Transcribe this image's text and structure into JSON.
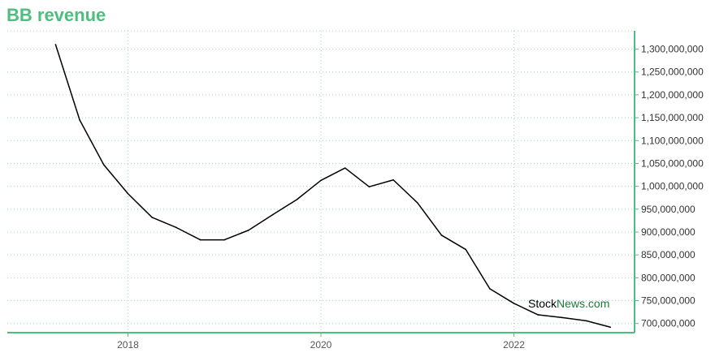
{
  "title": "BB revenue",
  "watermark": {
    "part1": "Stock",
    "part2": "News",
    "part3": ".com"
  },
  "colors": {
    "accent": "#4cbf7e",
    "line": "#000000",
    "grid": "#9fd9c0",
    "watermark_green": "#1a7a3a"
  },
  "chart_data": {
    "type": "line",
    "title": "BB revenue",
    "xlabel": "",
    "ylabel": "",
    "x_tick_labels": [
      "2018",
      "2020",
      "2022"
    ],
    "y_tick_labels": [
      "700,000,000",
      "750,000,000",
      "800,000,000",
      "850,000,000",
      "900,000,000",
      "950,000,000",
      "1,000,000,000",
      "1,050,000,000",
      "1,100,000,000",
      "1,150,000,000",
      "1,200,000,000",
      "1,250,000,000",
      "1,300,000,000"
    ],
    "y_ticks": [
      700000000,
      750000000,
      800000000,
      850000000,
      900000000,
      950000000,
      1000000000,
      1050000000,
      1100000000,
      1150000000,
      1200000000,
      1250000000,
      1300000000
    ],
    "x_ticks": [
      2018,
      2020,
      2022
    ],
    "ylim": [
      680000000,
      1340000000
    ],
    "xlim": [
      2016.75,
      2023.25
    ],
    "grid": true,
    "y_axis_position": "right",
    "series": [
      {
        "x": [
          2017.25,
          2017.5,
          2017.75,
          2018.0,
          2018.25,
          2018.5,
          2018.75,
          2019.0,
          2019.25,
          2019.5,
          2019.75,
          2020.0,
          2020.25,
          2020.5,
          2020.75,
          2021.0,
          2021.25,
          2021.5,
          2021.75,
          2022.0,
          2022.25,
          2022.5,
          2022.75,
          2023.0
        ],
        "values": [
          1310000000,
          1145000000,
          1047000000,
          984000000,
          932000000,
          910000000,
          883000000,
          883000000,
          904000000,
          938000000,
          971000000,
          1013000000,
          1040000000,
          999000000,
          1014000000,
          964000000,
          893000000,
          862000000,
          776000000,
          744000000,
          719000000,
          713000000,
          706000000,
          692000000
        ]
      }
    ]
  }
}
